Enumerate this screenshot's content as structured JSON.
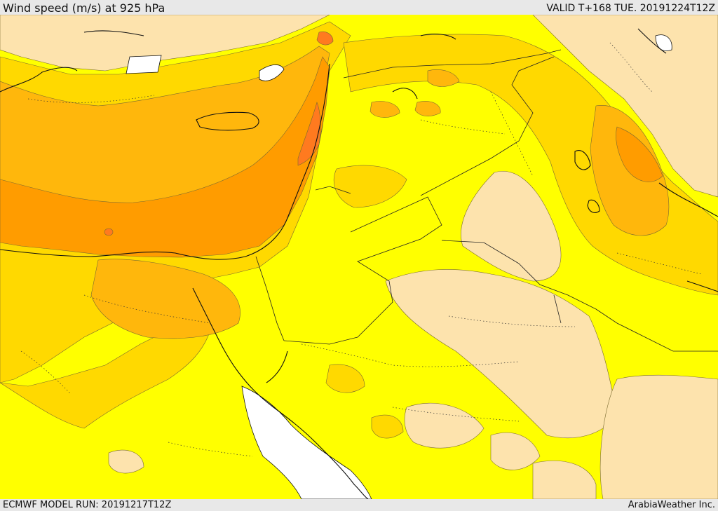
{
  "header": {
    "title": "Wind speed (m/s) at 925 hPa",
    "valid": "VALID T+168 TUE. 20191224T12Z"
  },
  "footer": {
    "model_run": "ECMWF MODEL RUN: 20191217T12Z",
    "credit": "ArabiaWeather Inc."
  },
  "colors": {
    "calm": "#fde3ad",
    "light": "#ffff00",
    "moderate": "#ffd900",
    "fresh": "#ffb70c",
    "strong": "#ff9c00",
    "very_strong": "#ff7a1f",
    "no_data": "#ffffff",
    "coastline": "#111111",
    "contour": "#5a4a20"
  }
}
